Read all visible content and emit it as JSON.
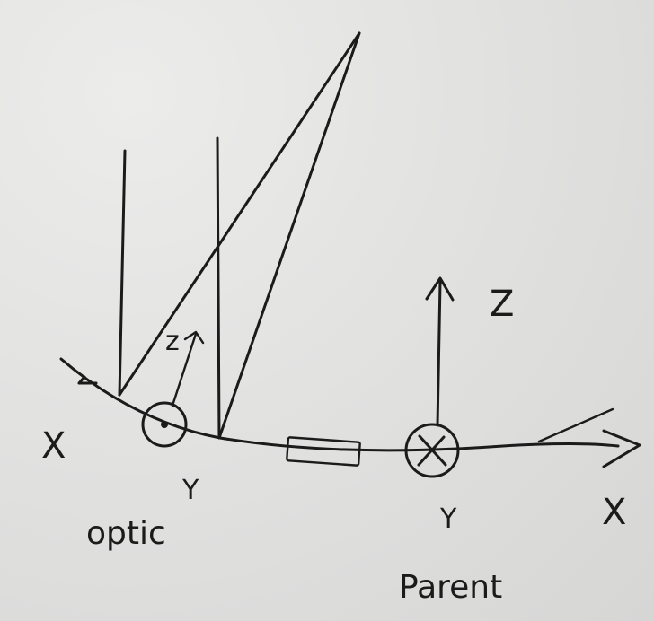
{
  "labels": {
    "left_x": "X",
    "optic_y": "Y",
    "optic_word": "optic",
    "optic_z": "z",
    "parent_z": "Z",
    "parent_y": "Y",
    "parent_word": "Parent",
    "right_x": "X"
  }
}
